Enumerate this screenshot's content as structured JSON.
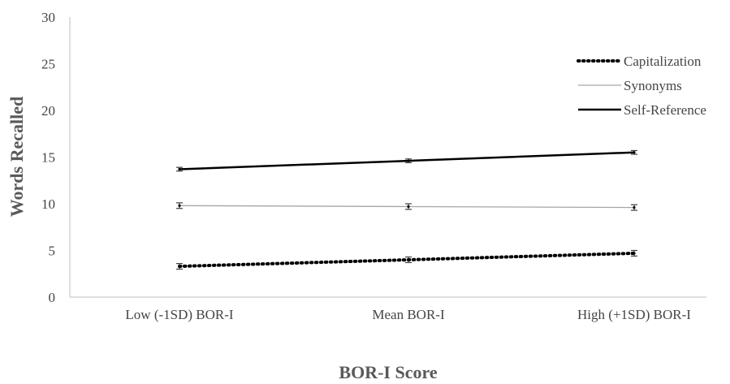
{
  "chart_data": {
    "type": "line",
    "categories": [
      "Low (-1SD) BOR-I",
      "Mean BOR-I",
      "High (+1SD) BOR-I"
    ],
    "series": [
      {
        "name": "Capitalization",
        "values": [
          3.3,
          4.0,
          4.7
        ],
        "errors": [
          0.3,
          0.3,
          0.3
        ],
        "color": "#000000",
        "style": "dotted"
      },
      {
        "name": "Synonyms",
        "values": [
          9.8,
          9.7,
          9.6
        ],
        "errors": [
          0.3,
          0.3,
          0.3
        ],
        "color": "#a6a6a6",
        "style": "thin"
      },
      {
        "name": "Self-Reference",
        "values": [
          13.7,
          14.6,
          15.5
        ],
        "errors": [
          0.2,
          0.2,
          0.2
        ],
        "color": "#000000",
        "style": "thick"
      }
    ],
    "title": "",
    "xlabel": "BOR-I Score",
    "ylabel": "Words Recalled",
    "ylim": [
      0,
      30
    ],
    "yticks": [
      0,
      5,
      10,
      15,
      20,
      25,
      30
    ],
    "grid": false,
    "legend_position": "top-right"
  }
}
